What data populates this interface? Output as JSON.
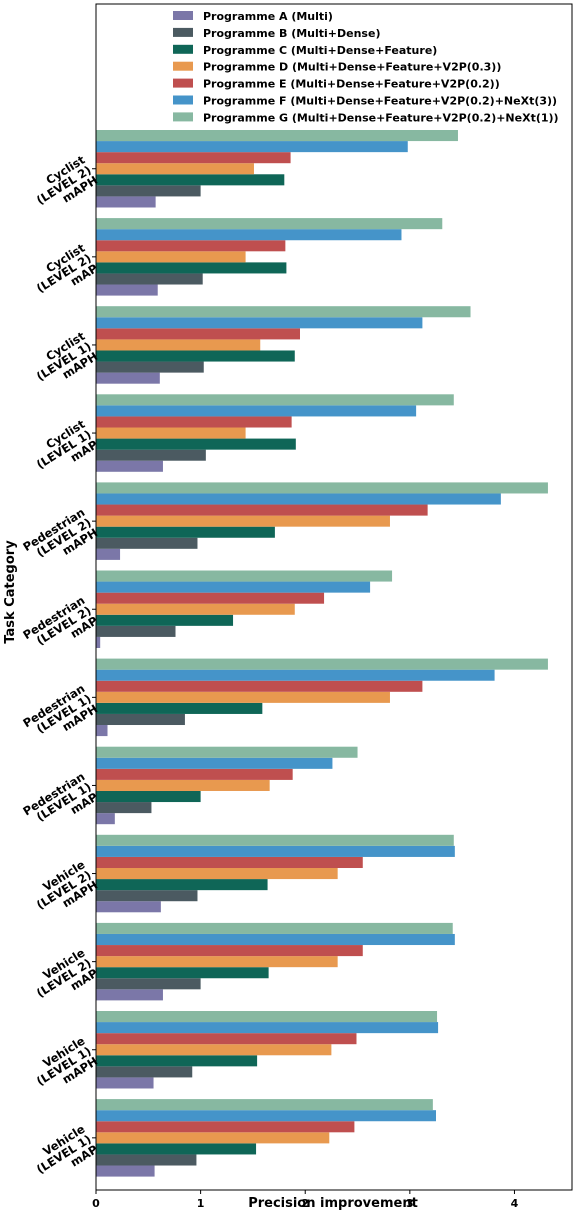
{
  "chart_data": {
    "type": "bar",
    "orientation": "horizontal",
    "title": "",
    "xlabel": "Precision improvement",
    "ylabel": "Task Category",
    "xlim": [
      0,
      4.55
    ],
    "xticks": [
      0,
      1,
      2,
      3,
      4
    ],
    "grid": false,
    "legend_position": "top",
    "categories": [
      "Cyclist\n(LEVEL 2)\nmAPH",
      "Cyclist\n(LEVEL 2)\nmAP",
      "Cyclist\n(LEVEL 1)\nmAPH",
      "Cyclist\n(LEVEL 1)\nmAP",
      "Pedestrian\n(LEVEL 2)\nmAPH",
      "Pedestrian\n(LEVEL 2)\nmAP",
      "Pedestrian\n(LEVEL 1)\nmAPH",
      "Pedestrian\n(LEVEL 1)\nmAP",
      "Vehicle\n(LEVEL 2)\nmAPH",
      "Vehicle\n(LEVEL 2)\nmAP",
      "Vehicle\n(LEVEL 1)\nmAPH",
      "Vehicle\n(LEVEL 1)\nmAP"
    ],
    "series": [
      {
        "name": "Programme A (Multi)",
        "color": "#7b77a8",
        "values": [
          0.57,
          0.59,
          0.61,
          0.64,
          0.23,
          0.04,
          0.11,
          0.18,
          0.62,
          0.64,
          0.55,
          0.56
        ]
      },
      {
        "name": "Programme B (Multi+Dense)",
        "color": "#4b5a61",
        "values": [
          1.0,
          1.02,
          1.03,
          1.05,
          0.97,
          0.76,
          0.85,
          0.53,
          0.97,
          1.0,
          0.92,
          0.96
        ]
      },
      {
        "name": "Programme C (Multi+Dense+Feature)",
        "color": "#0f6657",
        "values": [
          1.8,
          1.82,
          1.9,
          1.91,
          1.71,
          1.31,
          1.59,
          1.0,
          1.64,
          1.65,
          1.54,
          1.53
        ]
      },
      {
        "name": "Programme D (Multi+Dense+Feature+V2P(0.3))",
        "color": "#e8994f",
        "values": [
          1.51,
          1.43,
          1.57,
          1.43,
          2.81,
          1.9,
          2.81,
          1.66,
          2.31,
          2.31,
          2.25,
          2.23
        ]
      },
      {
        "name": "Programme E (Multi+Dense+Feature+V2P(0.2))",
        "color": "#bf4f4f",
        "values": [
          1.86,
          1.81,
          1.95,
          1.87,
          3.17,
          2.18,
          3.12,
          1.88,
          2.55,
          2.55,
          2.49,
          2.47
        ]
      },
      {
        "name": "Programme F (Multi+Dense+Feature+V2P(0.2)+NeXt(3))",
        "color": "#4594c9",
        "values": [
          2.98,
          2.92,
          3.12,
          3.06,
          3.87,
          2.62,
          3.81,
          2.26,
          3.43,
          3.43,
          3.27,
          3.25
        ]
      },
      {
        "name": "Programme G (Multi+Dense+Feature+V2P(0.2)+NeXt(1))",
        "color": "#87b8a1",
        "values": [
          3.46,
          3.31,
          3.58,
          3.42,
          4.32,
          2.83,
          4.32,
          2.5,
          3.42,
          3.41,
          3.26,
          3.22
        ]
      }
    ]
  }
}
